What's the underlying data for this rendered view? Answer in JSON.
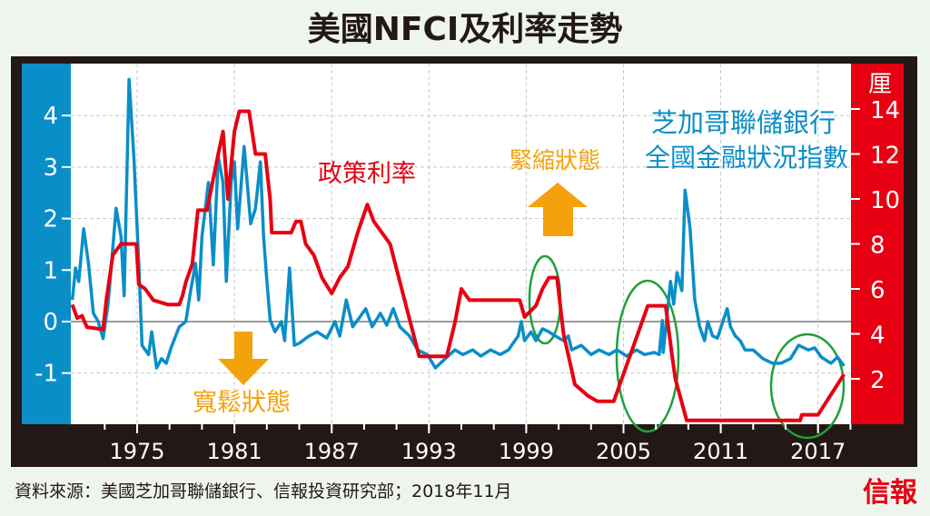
{
  "title": "美國NFCI及利率走勢",
  "source": "資料來源：美國芝加哥聯儲銀行、信報投資研究部；2018年11月",
  "logo": "信報",
  "colors": {
    "nfci": "#0a8ec8",
    "rate": "#e60012",
    "annotation": "#f3a20b",
    "ellipse": "#1ea03c",
    "frame": "#231815"
  },
  "chart_data": {
    "type": "line",
    "title": "美國NFCI及利率走勢",
    "xlabel": "",
    "x_ticks": [
      "1975",
      "1981",
      "1987",
      "1993",
      "1999",
      "2005",
      "2011",
      "2017"
    ],
    "xlim": [
      1970.9,
      2019.1
    ],
    "left_axis": {
      "label": "",
      "ticks": [
        "4",
        "3",
        "2",
        "1",
        "0",
        "-1"
      ],
      "ylim": [
        -2.0,
        5.0
      ]
    },
    "right_axis": {
      "label": "厘",
      "ticks": [
        "14",
        "12",
        "10",
        "8",
        "6",
        "4",
        "2"
      ],
      "ylim": [
        0,
        16
      ]
    },
    "annotations": {
      "rate_label": "政策利率",
      "loose_label": "寬鬆狀態",
      "tight_label": "緊縮狀態",
      "nfci_label_line1": "芝加哥聯儲銀行",
      "nfci_label_line2": "全國金融狀況指數"
    },
    "series": [
      {
        "name": "全國金融狀況指數",
        "axis": "left",
        "points": [
          [
            1971.0,
            0.42
          ],
          [
            1971.2,
            1.04
          ],
          [
            1971.4,
            0.78
          ],
          [
            1971.7,
            1.8
          ],
          [
            1972.0,
            1.13
          ],
          [
            1972.3,
            0.16
          ],
          [
            1972.6,
            0
          ],
          [
            1972.9,
            -0.33
          ],
          [
            1973.2,
            0.33
          ],
          [
            1973.4,
            1.04
          ],
          [
            1973.7,
            2.2
          ],
          [
            1974.0,
            1.66
          ],
          [
            1974.2,
            0.5
          ],
          [
            1974.5,
            4.7
          ],
          [
            1974.8,
            3.2
          ],
          [
            1975.1,
            1.13
          ],
          [
            1975.3,
            -0.46
          ],
          [
            1975.7,
            -0.64
          ],
          [
            1975.9,
            -0.2
          ],
          [
            1976.2,
            -0.9
          ],
          [
            1976.5,
            -0.72
          ],
          [
            1976.8,
            -0.81
          ],
          [
            1977.1,
            -0.5
          ],
          [
            1977.6,
            -0.1
          ],
          [
            1978.0,
            0
          ],
          [
            1978.3,
            0.6
          ],
          [
            1978.6,
            1.13
          ],
          [
            1978.8,
            0.42
          ],
          [
            1979.0,
            1.66
          ],
          [
            1979.4,
            2.7
          ],
          [
            1979.7,
            1.1
          ],
          [
            1980.0,
            3.2
          ],
          [
            1980.3,
            2.7
          ],
          [
            1980.5,
            0.78
          ],
          [
            1980.8,
            2.7
          ],
          [
            1981.0,
            3.1
          ],
          [
            1981.2,
            1.8
          ],
          [
            1981.6,
            3.4
          ],
          [
            1982.0,
            1.9
          ],
          [
            1982.3,
            2.2
          ],
          [
            1982.6,
            3.1
          ],
          [
            1982.8,
            1.66
          ],
          [
            1983.0,
            0.8
          ],
          [
            1983.2,
            0.04
          ],
          [
            1983.5,
            -0.2
          ],
          [
            1983.9,
            0
          ],
          [
            1984.1,
            -0.37
          ],
          [
            1984.4,
            1.04
          ],
          [
            1984.7,
            -0.46
          ],
          [
            1985.0,
            -0.42
          ],
          [
            1985.6,
            -0.28
          ],
          [
            1986.1,
            -0.2
          ],
          [
            1986.7,
            -0.32
          ],
          [
            1987.2,
            0
          ],
          [
            1987.5,
            -0.28
          ],
          [
            1987.9,
            0.42
          ],
          [
            1988.3,
            -0.1
          ],
          [
            1988.7,
            0.07
          ],
          [
            1989.1,
            0.25
          ],
          [
            1989.5,
            -0.1
          ],
          [
            1990.0,
            0.16
          ],
          [
            1990.4,
            -0.07
          ],
          [
            1990.8,
            0.25
          ],
          [
            1991.2,
            -0.1
          ],
          [
            1991.8,
            -0.28
          ],
          [
            1992.3,
            -0.55
          ],
          [
            1992.9,
            -0.64
          ],
          [
            1993.4,
            -0.9
          ],
          [
            1994.0,
            -0.72
          ],
          [
            1994.6,
            -0.55
          ],
          [
            1995.1,
            -0.64
          ],
          [
            1995.7,
            -0.55
          ],
          [
            1996.2,
            -0.67
          ],
          [
            1996.8,
            -0.55
          ],
          [
            1997.4,
            -0.64
          ],
          [
            1997.9,
            -0.55
          ],
          [
            1998.5,
            -0.28
          ],
          [
            1998.7,
            0
          ],
          [
            1998.9,
            -0.37
          ],
          [
            1999.3,
            -0.2
          ],
          [
            1999.6,
            -0.37
          ],
          [
            2000.0,
            -0.14
          ],
          [
            2000.4,
            -0.2
          ],
          [
            2000.8,
            -0.28
          ],
          [
            2001.3,
            -0.37
          ],
          [
            2001.6,
            -0.28
          ],
          [
            2001.8,
            -0.55
          ],
          [
            2002.4,
            -0.46
          ],
          [
            2003.0,
            -0.64
          ],
          [
            2003.5,
            -0.55
          ],
          [
            2004.1,
            -0.64
          ],
          [
            2004.6,
            -0.55
          ],
          [
            2005.2,
            -0.67
          ],
          [
            2005.8,
            -0.55
          ],
          [
            2006.3,
            -0.64
          ],
          [
            2006.9,
            -0.6
          ],
          [
            2007.2,
            -0.64
          ],
          [
            2007.4,
            0.02
          ],
          [
            2007.45,
            -0.6
          ],
          [
            2007.9,
            0.78
          ],
          [
            2008.1,
            0.34
          ],
          [
            2008.3,
            0.95
          ],
          [
            2008.6,
            0.6
          ],
          [
            2008.8,
            2.55
          ],
          [
            2009.1,
            1.83
          ],
          [
            2009.4,
            0.42
          ],
          [
            2009.7,
            -0.1
          ],
          [
            2010.0,
            -0.37
          ],
          [
            2010.2,
            0
          ],
          [
            2010.5,
            -0.28
          ],
          [
            2010.8,
            -0.32
          ],
          [
            2011.2,
            0.07
          ],
          [
            2011.4,
            0.25
          ],
          [
            2011.6,
            -0.1
          ],
          [
            2011.9,
            -0.28
          ],
          [
            2012.2,
            -0.37
          ],
          [
            2012.5,
            -0.55
          ],
          [
            2013.0,
            -0.55
          ],
          [
            2013.6,
            -0.72
          ],
          [
            2014.2,
            -0.81
          ],
          [
            2014.7,
            -0.81
          ],
          [
            2015.3,
            -0.72
          ],
          [
            2015.8,
            -0.46
          ],
          [
            2016.4,
            -0.55
          ],
          [
            2016.8,
            -0.51
          ],
          [
            2017.2,
            -0.69
          ],
          [
            2017.8,
            -0.81
          ],
          [
            2018.2,
            -0.69
          ],
          [
            2018.6,
            -0.86
          ]
        ]
      },
      {
        "name": "政策利率",
        "axis": "right",
        "points": [
          [
            1971.0,
            5.3
          ],
          [
            1971.3,
            4.7
          ],
          [
            1971.6,
            4.8
          ],
          [
            1971.9,
            4.3
          ],
          [
            1972.9,
            4.2
          ],
          [
            1973.1,
            5.5
          ],
          [
            1973.5,
            7.5
          ],
          [
            1974.0,
            8.0
          ],
          [
            1974.95,
            8.0
          ],
          [
            1975.1,
            6.2
          ],
          [
            1975.5,
            6.0
          ],
          [
            1976.0,
            5.5
          ],
          [
            1976.9,
            5.3
          ],
          [
            1977.6,
            5.3
          ],
          [
            1977.8,
            5.7
          ],
          [
            1978.0,
            6.3
          ],
          [
            1978.4,
            7.1
          ],
          [
            1978.75,
            9.5
          ],
          [
            1979.3,
            9.5
          ],
          [
            1980.0,
            12
          ],
          [
            1980.3,
            13
          ],
          [
            1980.6,
            10
          ],
          [
            1981.0,
            13
          ],
          [
            1981.3,
            13.9
          ],
          [
            1981.9,
            13.9
          ],
          [
            1982.3,
            12
          ],
          [
            1982.9,
            12
          ],
          [
            1983.2,
            10
          ],
          [
            1983.3,
            8.5
          ],
          [
            1984.5,
            8.5
          ],
          [
            1984.8,
            9
          ],
          [
            1985.1,
            9
          ],
          [
            1985.4,
            8
          ],
          [
            1985.9,
            7.5
          ],
          [
            1986.4,
            6.5
          ],
          [
            1987.0,
            5.8
          ],
          [
            1987.5,
            6.5
          ],
          [
            1988.0,
            7
          ],
          [
            1988.6,
            8.5
          ],
          [
            1989.2,
            9.75
          ],
          [
            1989.6,
            9.0
          ],
          [
            1990.6,
            8
          ],
          [
            1991.5,
            5.5
          ],
          [
            1992.4,
            3
          ],
          [
            1994.1,
            3
          ],
          [
            1994.6,
            4.5
          ],
          [
            1995.0,
            6
          ],
          [
            1995.5,
            5.5
          ],
          [
            1998.6,
            5.5
          ],
          [
            1998.9,
            4.75
          ],
          [
            1999.6,
            5.25
          ],
          [
            2000.0,
            6.0
          ],
          [
            2000.4,
            6.5
          ],
          [
            2000.9,
            6.5
          ],
          [
            2001.3,
            4
          ],
          [
            2002.0,
            1.75
          ],
          [
            2002.8,
            1.25
          ],
          [
            2003.4,
            1.0
          ],
          [
            2004.4,
            1.0
          ],
          [
            2006.5,
            5.25
          ],
          [
            2007.6,
            5.25
          ],
          [
            2008.0,
            3
          ],
          [
            2008.2,
            2
          ],
          [
            2008.9,
            0.15
          ],
          [
            2015.9,
            0.15
          ],
          [
            2016.0,
            0.4
          ],
          [
            2017.0,
            0.4
          ],
          [
            2018.6,
            2.2
          ]
        ]
      }
    ]
  }
}
